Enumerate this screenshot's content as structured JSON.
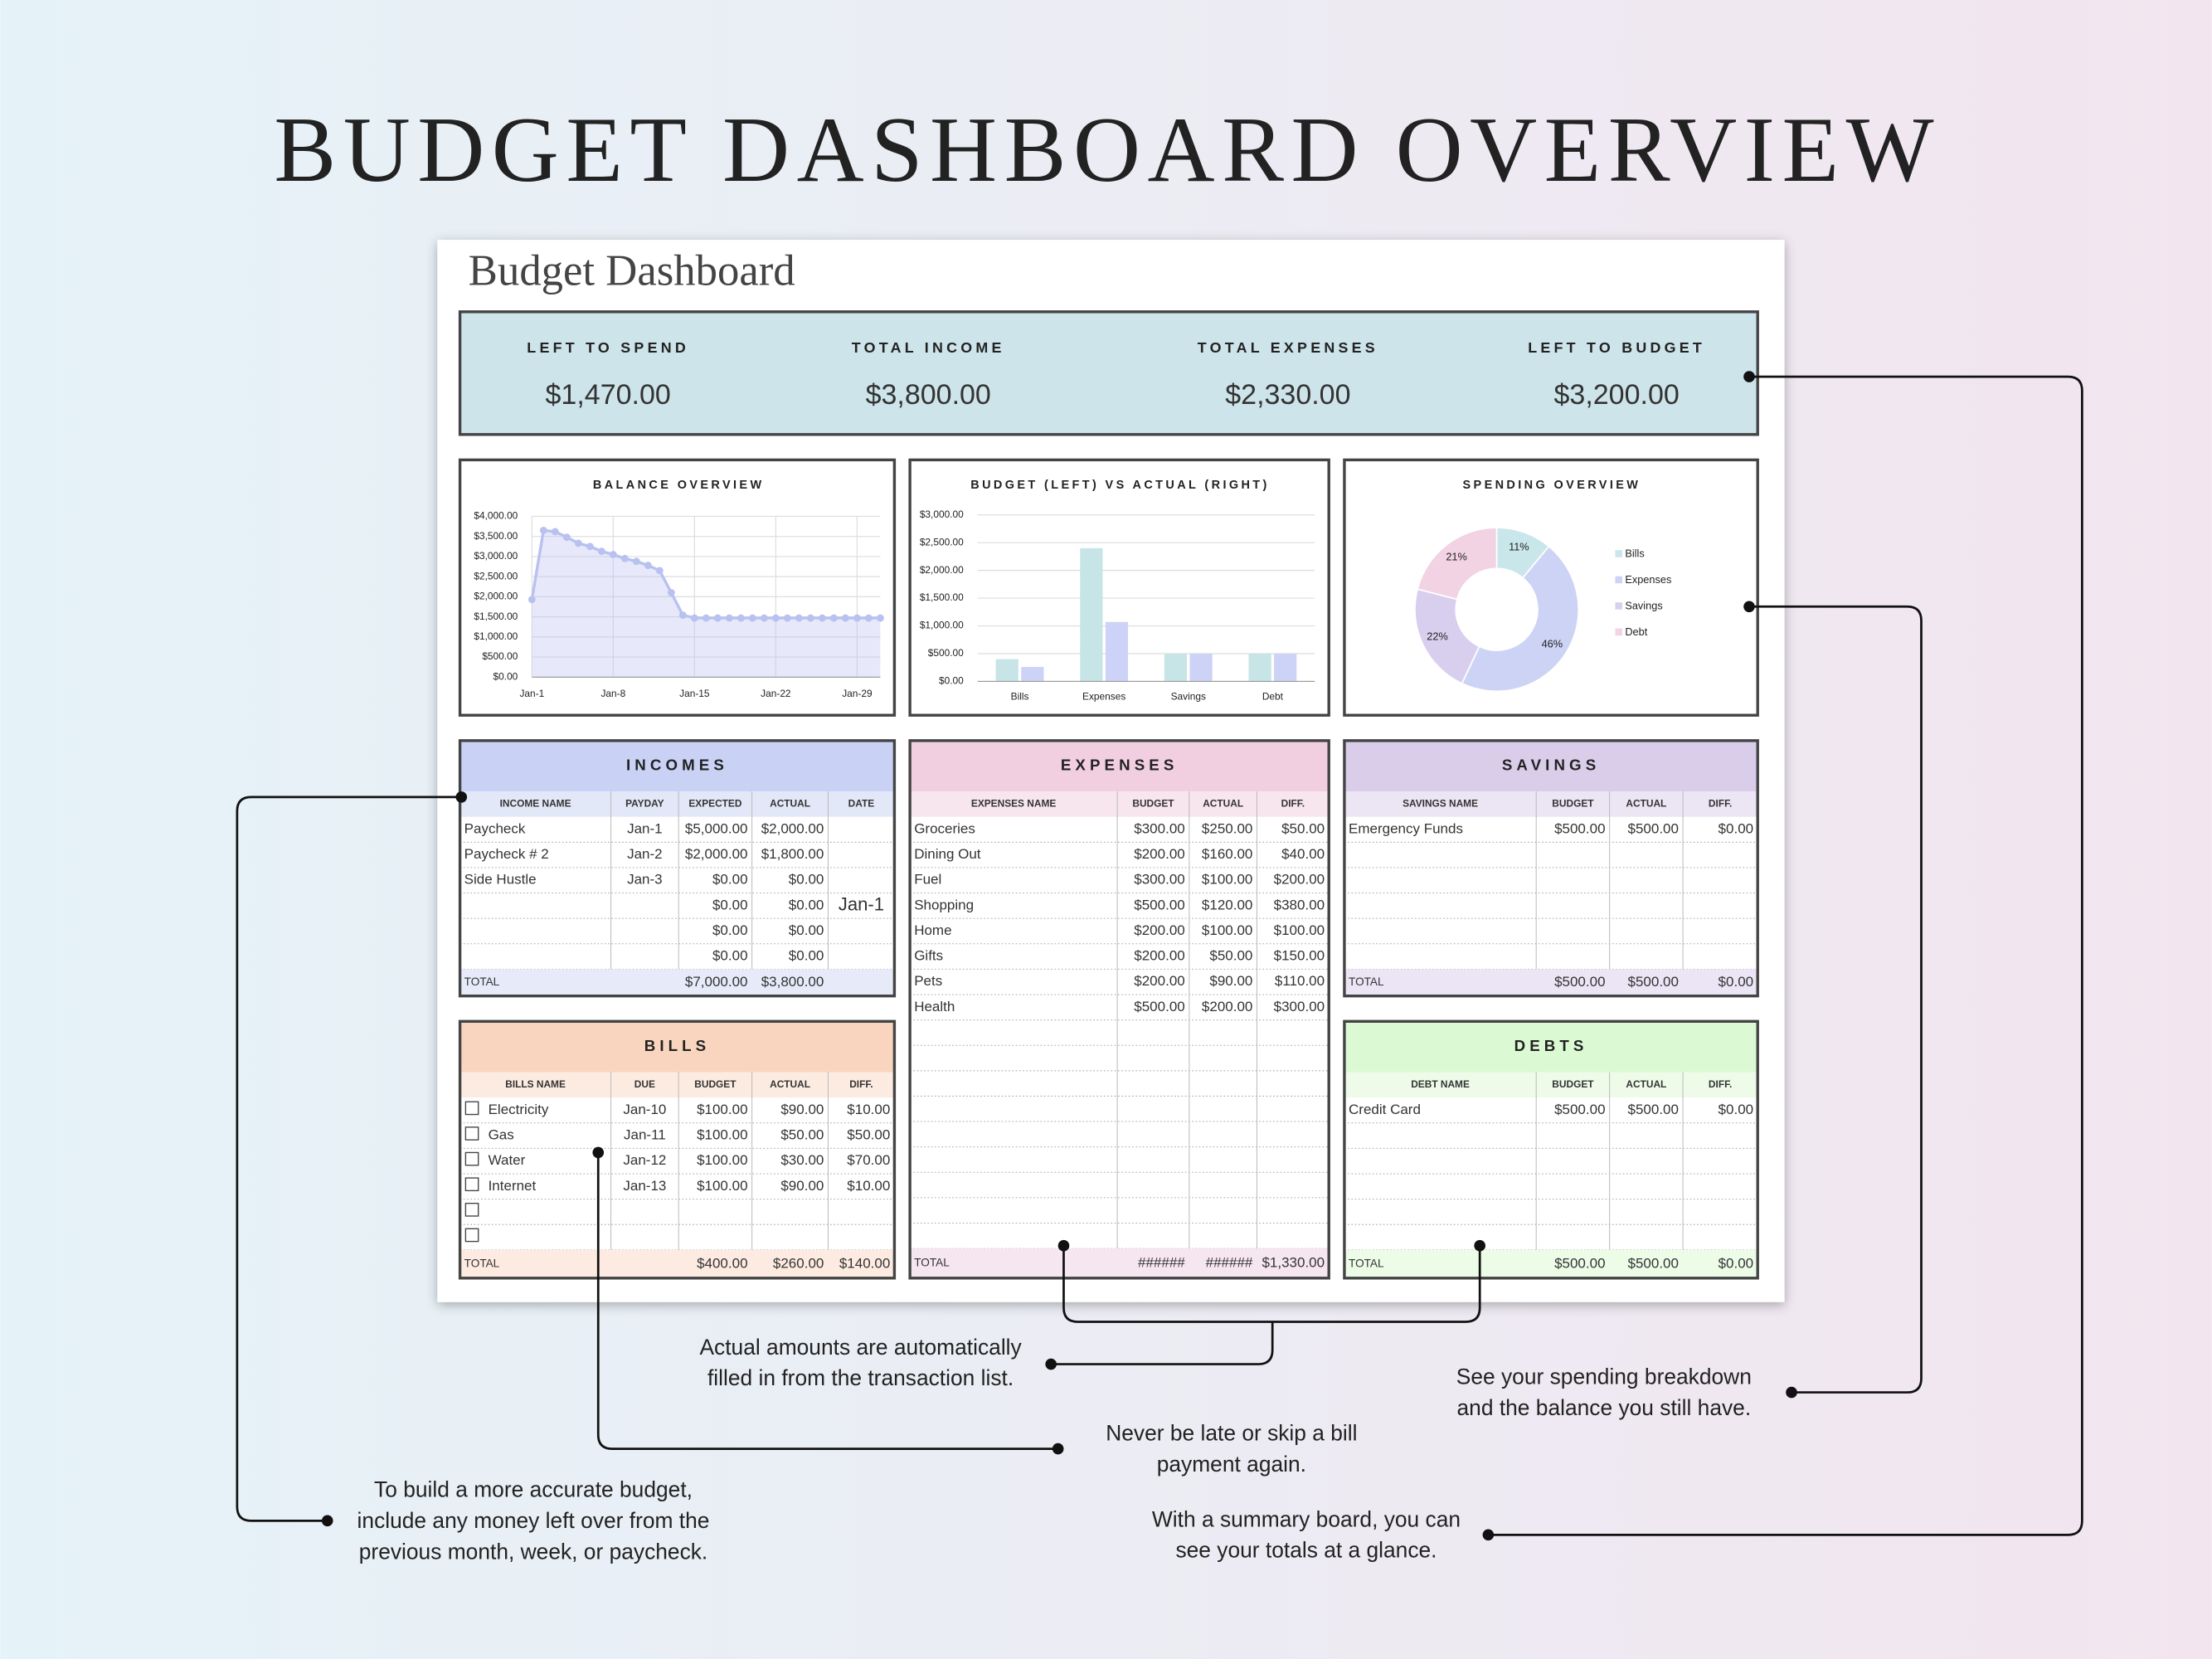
{
  "header": {
    "title": "BUDGET DASHBOARD OVERVIEW"
  },
  "sheet": {
    "title": "Budget Dashboard"
  },
  "summary": [
    {
      "label": "LEFT TO SPEND",
      "value": "$1,470.00"
    },
    {
      "label": "TOTAL INCOME",
      "value": "$3,800.00"
    },
    {
      "label": "TOTAL EXPENSES",
      "value": "$2,330.00"
    },
    {
      "label": "LEFT TO BUDGET",
      "value": "$3,200.00"
    }
  ],
  "chart_data": [
    {
      "type": "line",
      "title": "BALANCE OVERVIEW",
      "color": "#b9c1f0",
      "x": [
        "Jan-1",
        null,
        null,
        null,
        null,
        null,
        null,
        "Jan-8",
        null,
        null,
        null,
        null,
        null,
        null,
        "Jan-15",
        null,
        null,
        null,
        null,
        null,
        null,
        "Jan-22",
        null,
        null,
        null,
        null,
        null,
        null,
        "Jan-29",
        null,
        null
      ],
      "values": [
        1930,
        3650,
        3620,
        3480,
        3330,
        3250,
        3130,
        3050,
        2950,
        2880,
        2780,
        2650,
        2100,
        1540,
        1470,
        1470,
        1470,
        1470,
        1470,
        1470,
        1470,
        1470,
        1470,
        1470,
        1470,
        1470,
        1470,
        1470,
        1470,
        1470,
        1470
      ],
      "ylim": [
        0,
        4000
      ],
      "yticks": [
        {
          "value": 0,
          "label": "$0.00"
        },
        {
          "value": 500,
          "label": "$500.00"
        },
        {
          "value": 1000,
          "label": "$1,000.00"
        },
        {
          "value": 1500,
          "label": "$1,500.00"
        },
        {
          "value": 2000,
          "label": "$2,000.00"
        },
        {
          "value": 2500,
          "label": "$2,500.00"
        },
        {
          "value": 3000,
          "label": "$3,000.00"
        },
        {
          "value": 3500,
          "label": "$3,500.00"
        },
        {
          "value": 4000,
          "label": "$4,000.00"
        }
      ],
      "grid": true
    },
    {
      "type": "bar",
      "title": "BUDGET (LEFT) VS ACTUAL (RIGHT)",
      "categories": [
        "Bills",
        "Expenses",
        "Savings",
        "Debt"
      ],
      "series": [
        {
          "color": "#c7e4e6",
          "values": [
            400,
            2400,
            500,
            500
          ]
        },
        {
          "color": "#cdd3f6",
          "values": [
            260,
            1070,
            500,
            500
          ]
        }
      ],
      "ylim": [
        0,
        3000
      ],
      "yticks": [
        {
          "value": 0,
          "label": "$0.00"
        },
        {
          "value": 500,
          "label": "$500.00"
        },
        {
          "value": 1000,
          "label": "$1,000.00"
        },
        {
          "value": 1500,
          "label": "$1,500.00"
        },
        {
          "value": 2000,
          "label": "$2,000.00"
        },
        {
          "value": 2500,
          "label": "$2,500.00"
        },
        {
          "value": 3000,
          "label": "$3,000.00"
        }
      ],
      "grid": true
    },
    {
      "type": "pie",
      "title": "SPENDING OVERVIEW",
      "categories": [
        "Bills",
        "Expenses",
        "Savings",
        "Debt"
      ],
      "values": [
        11,
        46,
        22,
        21
      ],
      "value_labels": [
        "11%",
        "46%",
        "22%",
        "21%"
      ],
      "colors": [
        "#c9e6ea",
        "#ccd3f5",
        "#d8cfee",
        "#f2d3e3"
      ],
      "legend": "right"
    }
  ],
  "incomes": {
    "title": "INCOMES",
    "columns": [
      "INCOME NAME",
      "PAYDAY",
      "EXPECTED",
      "ACTUAL",
      "DATE"
    ],
    "rows": [
      [
        "Paycheck",
        "Jan-1",
        "$5,000.00",
        "$2,000.00"
      ],
      [
        "Paycheck # 2",
        "Jan-2",
        "$2,000.00",
        "$1,800.00"
      ],
      [
        "Side Hustle",
        "Jan-3",
        "$0.00",
        "$0.00"
      ],
      [
        null,
        null,
        "$0.00",
        "$0.00"
      ],
      [
        null,
        null,
        "$0.00",
        "$0.00"
      ],
      [
        null,
        null,
        "$0.00",
        "$0.00"
      ]
    ],
    "date": "Jan-1",
    "total": [
      "TOTAL",
      null,
      "$7,000.00",
      "$3,800.00"
    ]
  },
  "expenses": {
    "title": "EXPENSES",
    "columns": [
      "EXPENSES NAME",
      "BUDGET",
      "ACTUAL",
      "DIFF."
    ],
    "rows": [
      [
        "Groceries",
        "$300.00",
        "$250.00",
        "$50.00"
      ],
      [
        "Dining Out",
        "$200.00",
        "$160.00",
        "$40.00"
      ],
      [
        "Fuel",
        "$300.00",
        "$100.00",
        "$200.00"
      ],
      [
        "Shopping",
        "$500.00",
        "$120.00",
        "$380.00"
      ],
      [
        "Home",
        "$200.00",
        "$100.00",
        "$100.00"
      ],
      [
        "Gifts",
        "$200.00",
        "$50.00",
        "$150.00"
      ],
      [
        "Pets",
        "$200.00",
        "$90.00",
        "$110.00"
      ],
      [
        "Health",
        "$500.00",
        "$200.00",
        "$300.00"
      ]
    ],
    "total": [
      "TOTAL",
      "######",
      "######",
      "$1,330.00"
    ]
  },
  "savings": {
    "title": "SAVINGS",
    "columns": [
      "SAVINGS NAME",
      "BUDGET",
      "ACTUAL",
      "DIFF."
    ],
    "rows": [
      [
        "Emergency Funds",
        "$500.00",
        "$500.00",
        "$0.00"
      ]
    ],
    "total": [
      "TOTAL",
      "$500.00",
      "$500.00",
      "$0.00"
    ]
  },
  "bills": {
    "title": "BILLS",
    "columns": [
      "BILLS NAME",
      "DUE",
      "BUDGET",
      "ACTUAL",
      "DIFF."
    ],
    "rows": [
      [
        "Electricity",
        "Jan-10",
        "$100.00",
        "$90.00",
        "$10.00"
      ],
      [
        "Gas",
        "Jan-11",
        "$100.00",
        "$50.00",
        "$50.00"
      ],
      [
        "Water",
        "Jan-12",
        "$100.00",
        "$30.00",
        "$70.00"
      ],
      [
        "Internet",
        "Jan-13",
        "$100.00",
        "$90.00",
        "$10.00"
      ]
    ],
    "total": [
      "TOTAL",
      null,
      "$400.00",
      "$260.00",
      "$140.00"
    ]
  },
  "debts": {
    "title": "DEBTS",
    "columns": [
      "DEBT NAME",
      "BUDGET",
      "ACTUAL",
      "DIFF."
    ],
    "rows": [
      [
        "Credit Card",
        "$500.00",
        "$500.00",
        "$0.00"
      ]
    ],
    "total": [
      "TOTAL",
      "$500.00",
      "$500.00",
      "$0.00"
    ]
  },
  "annotations": [
    {
      "lines": [
        "Actual amounts are automatically",
        "filled in from the transaction list."
      ]
    },
    {
      "lines": [
        "See your spending breakdown",
        "and the balance you still have."
      ]
    },
    {
      "lines": [
        "Never be late or skip a bill",
        "payment again."
      ]
    },
    {
      "lines": [
        "To build a more accurate budget,",
        "include any money left over from the",
        "previous month, week, or paycheck."
      ]
    },
    {
      "lines": [
        "With a summary board, you can",
        "see your totals at a glance."
      ]
    }
  ]
}
